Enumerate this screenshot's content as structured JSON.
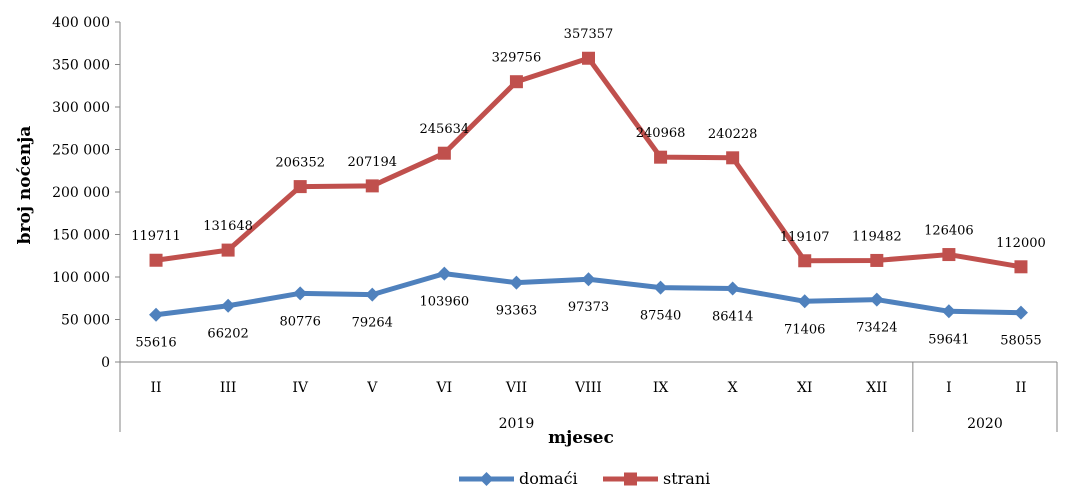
{
  "chart_data": {
    "type": "line",
    "xlabel": "mjesec",
    "ylabel": "broj noćenja",
    "ylim": [
      0,
      400000
    ],
    "y_ticks": [
      "0",
      "50 000",
      "100 000",
      "150 000",
      "200 000",
      "250 000",
      "300 000",
      "350 000",
      "400 000"
    ],
    "categories": [
      "II",
      "III",
      "IV",
      "V",
      "VI",
      "VII",
      "VIII",
      "IX",
      "X",
      "XI",
      "XII",
      "I",
      "II"
    ],
    "year_groups": [
      {
        "label": "2019",
        "count": 11
      },
      {
        "label": "2020",
        "count": 2
      }
    ],
    "series": [
      {
        "name": "domaći",
        "color": "#4F81BD",
        "marker": "diamond",
        "values": [
          55616,
          66202,
          80776,
          79264,
          103960,
          93363,
          97373,
          87540,
          86414,
          71406,
          73424,
          59641,
          58055
        ]
      },
      {
        "name": "strani",
        "color": "#C0504D",
        "marker": "square",
        "values": [
          119711,
          131648,
          206352,
          207194,
          245634,
          329756,
          357357,
          240968,
          240228,
          119107,
          119482,
          126406,
          112000
        ]
      }
    ],
    "legend_position": "bottom-center",
    "grid": false
  }
}
